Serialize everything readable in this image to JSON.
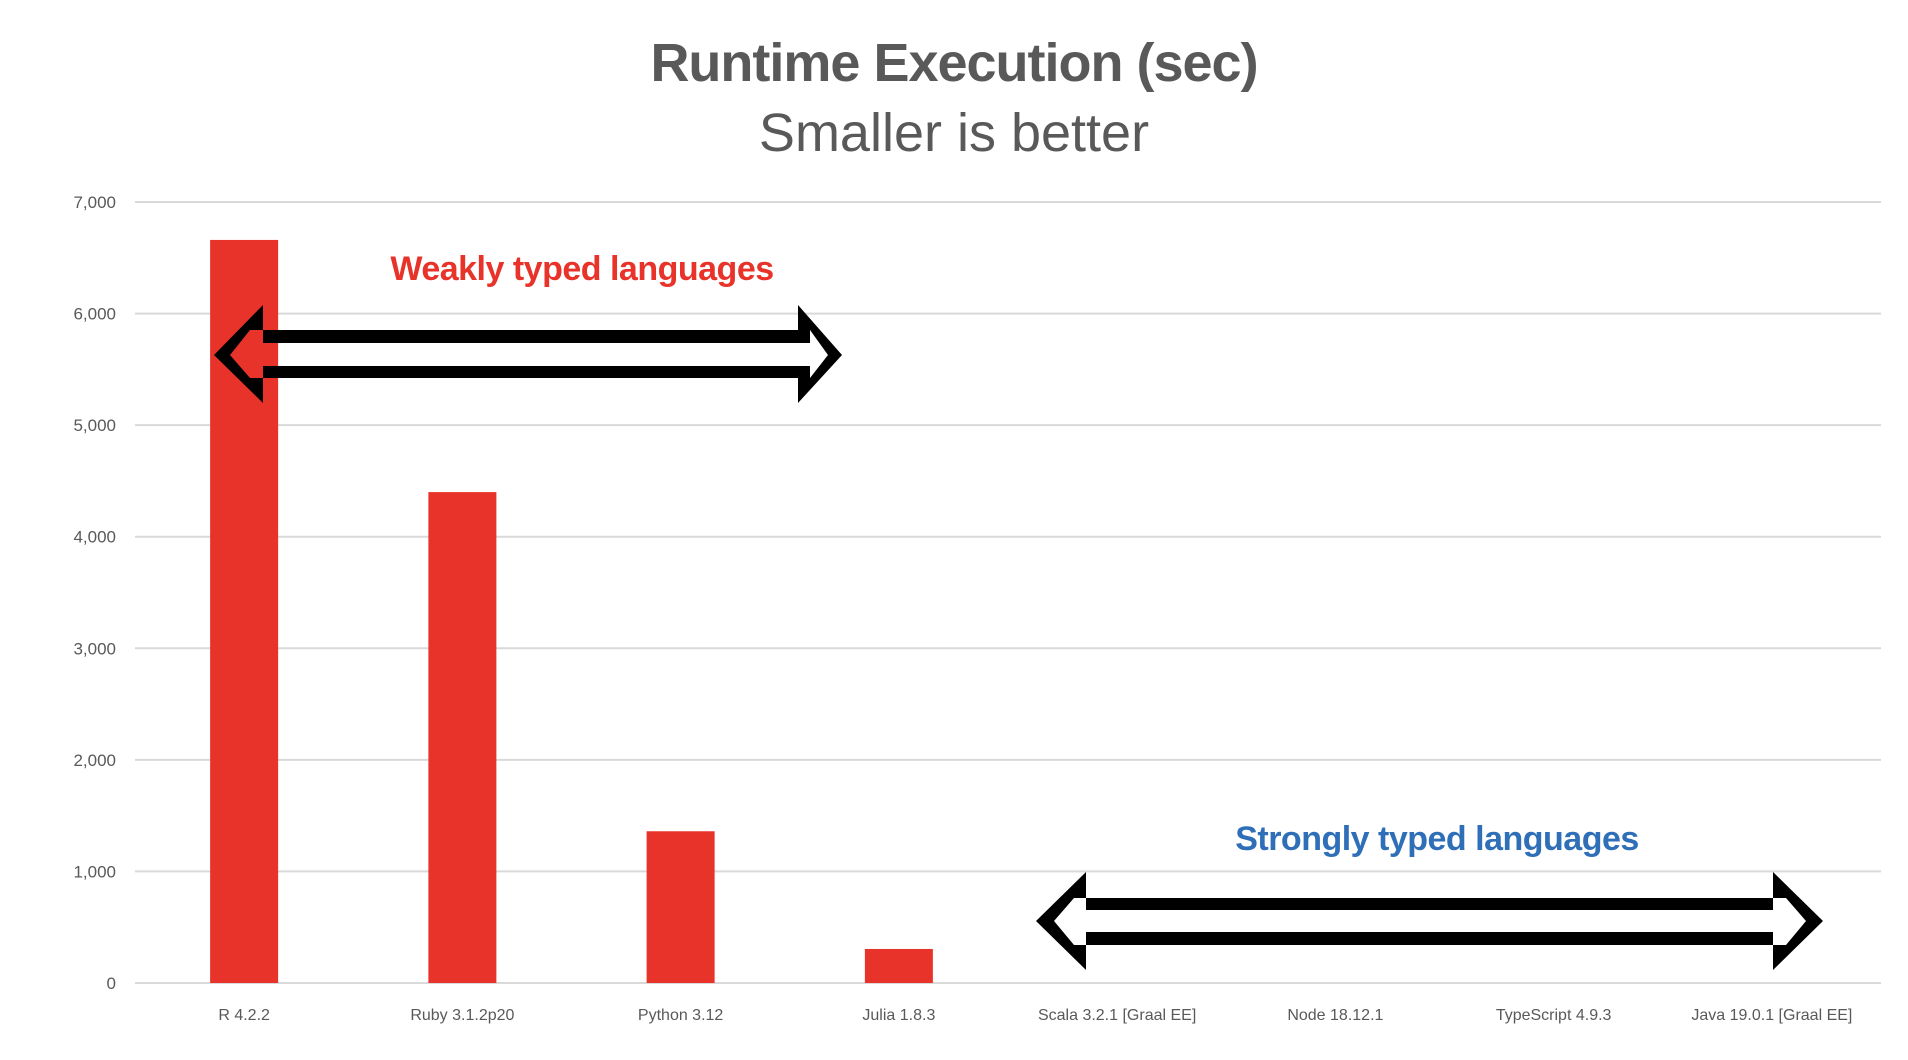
{
  "title": "Runtime Execution (sec)",
  "subtitle": "Smaller is better",
  "annotations": {
    "weak": {
      "label": "Weakly typed languages",
      "color": "#E8332A"
    },
    "strong": {
      "label": "Strongly typed languages",
      "color": "#2F6FB8"
    }
  },
  "colors": {
    "bar": "#E8332A",
    "grid": "#D9D9D9",
    "text": "#595959",
    "arrow": "#000000"
  },
  "chart_data": {
    "type": "bar",
    "title": "Runtime Execution (sec)",
    "subtitle": "Smaller is better",
    "xlabel": "",
    "ylabel": "",
    "categories": [
      "R 4.2.2",
      "Ruby 3.1.2p20",
      "Python 3.12",
      "Julia 1.8.3",
      "Scala 3.2.1 [Graal EE]",
      "Node 18.12.1",
      "TypeScript 4.9.3",
      "Java 19.0.1 [Graal EE]"
    ],
    "values": [
      6660,
      4400,
      1360,
      305,
      0,
      0,
      0,
      0
    ],
    "ylim": [
      0,
      7000
    ],
    "yticks": [
      0,
      1000,
      2000,
      3000,
      4000,
      5000,
      6000,
      7000
    ],
    "ytick_labels": [
      "0",
      "1,000",
      "2,000",
      "3,000",
      "4,000",
      "5,000",
      "6,000",
      "7,000"
    ],
    "grid": true,
    "legend": null,
    "annotations": [
      {
        "text": "Weakly typed languages",
        "spans": [
          "R 4.2.2",
          "Julia 1.8.3"
        ],
        "shape": "double-arrow"
      },
      {
        "text": "Strongly typed languages",
        "spans": [
          "Scala 3.2.1 [Graal EE]",
          "Java 19.0.1 [Graal EE]"
        ],
        "shape": "double-arrow"
      }
    ]
  }
}
